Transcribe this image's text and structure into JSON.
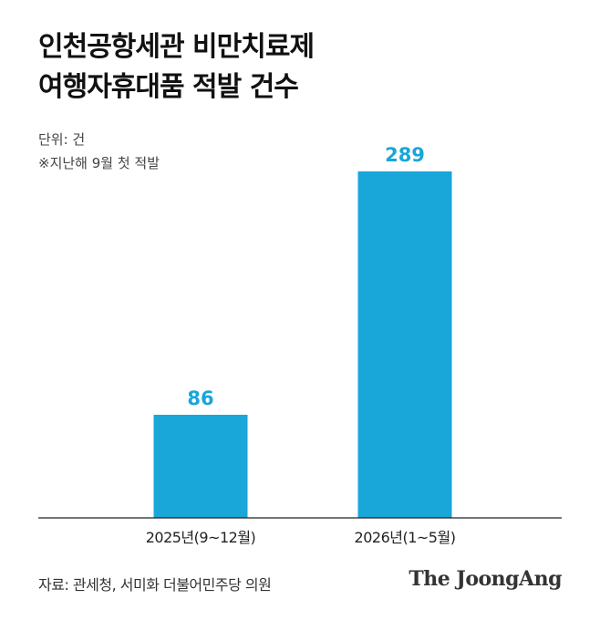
{
  "title_lines": [
    "인천공항세관 비만치료제",
    "여행자휴대품 적발 건수"
  ],
  "unit_note": "단위: 건",
  "footnote": "※지난해 9월 첫 적발",
  "source": "자료: 관세청, 서미화 더불어민주당 의원",
  "brand": "The JoongAng",
  "colors": {
    "bar": "#19a6d9",
    "label": "#19a6d9",
    "axis": "#222222"
  },
  "chart_data": {
    "type": "bar",
    "title": "인천공항세관 비만치료제 여행자휴대품 적발 건수",
    "categories": [
      "2025년(9~12월)",
      "2026년(1~5월)"
    ],
    "values": [
      86,
      289
    ],
    "ylim": [
      0,
      289
    ],
    "unit": "건",
    "grid": false,
    "legend": "none",
    "data_labels": [
      "86",
      "289"
    ]
  }
}
